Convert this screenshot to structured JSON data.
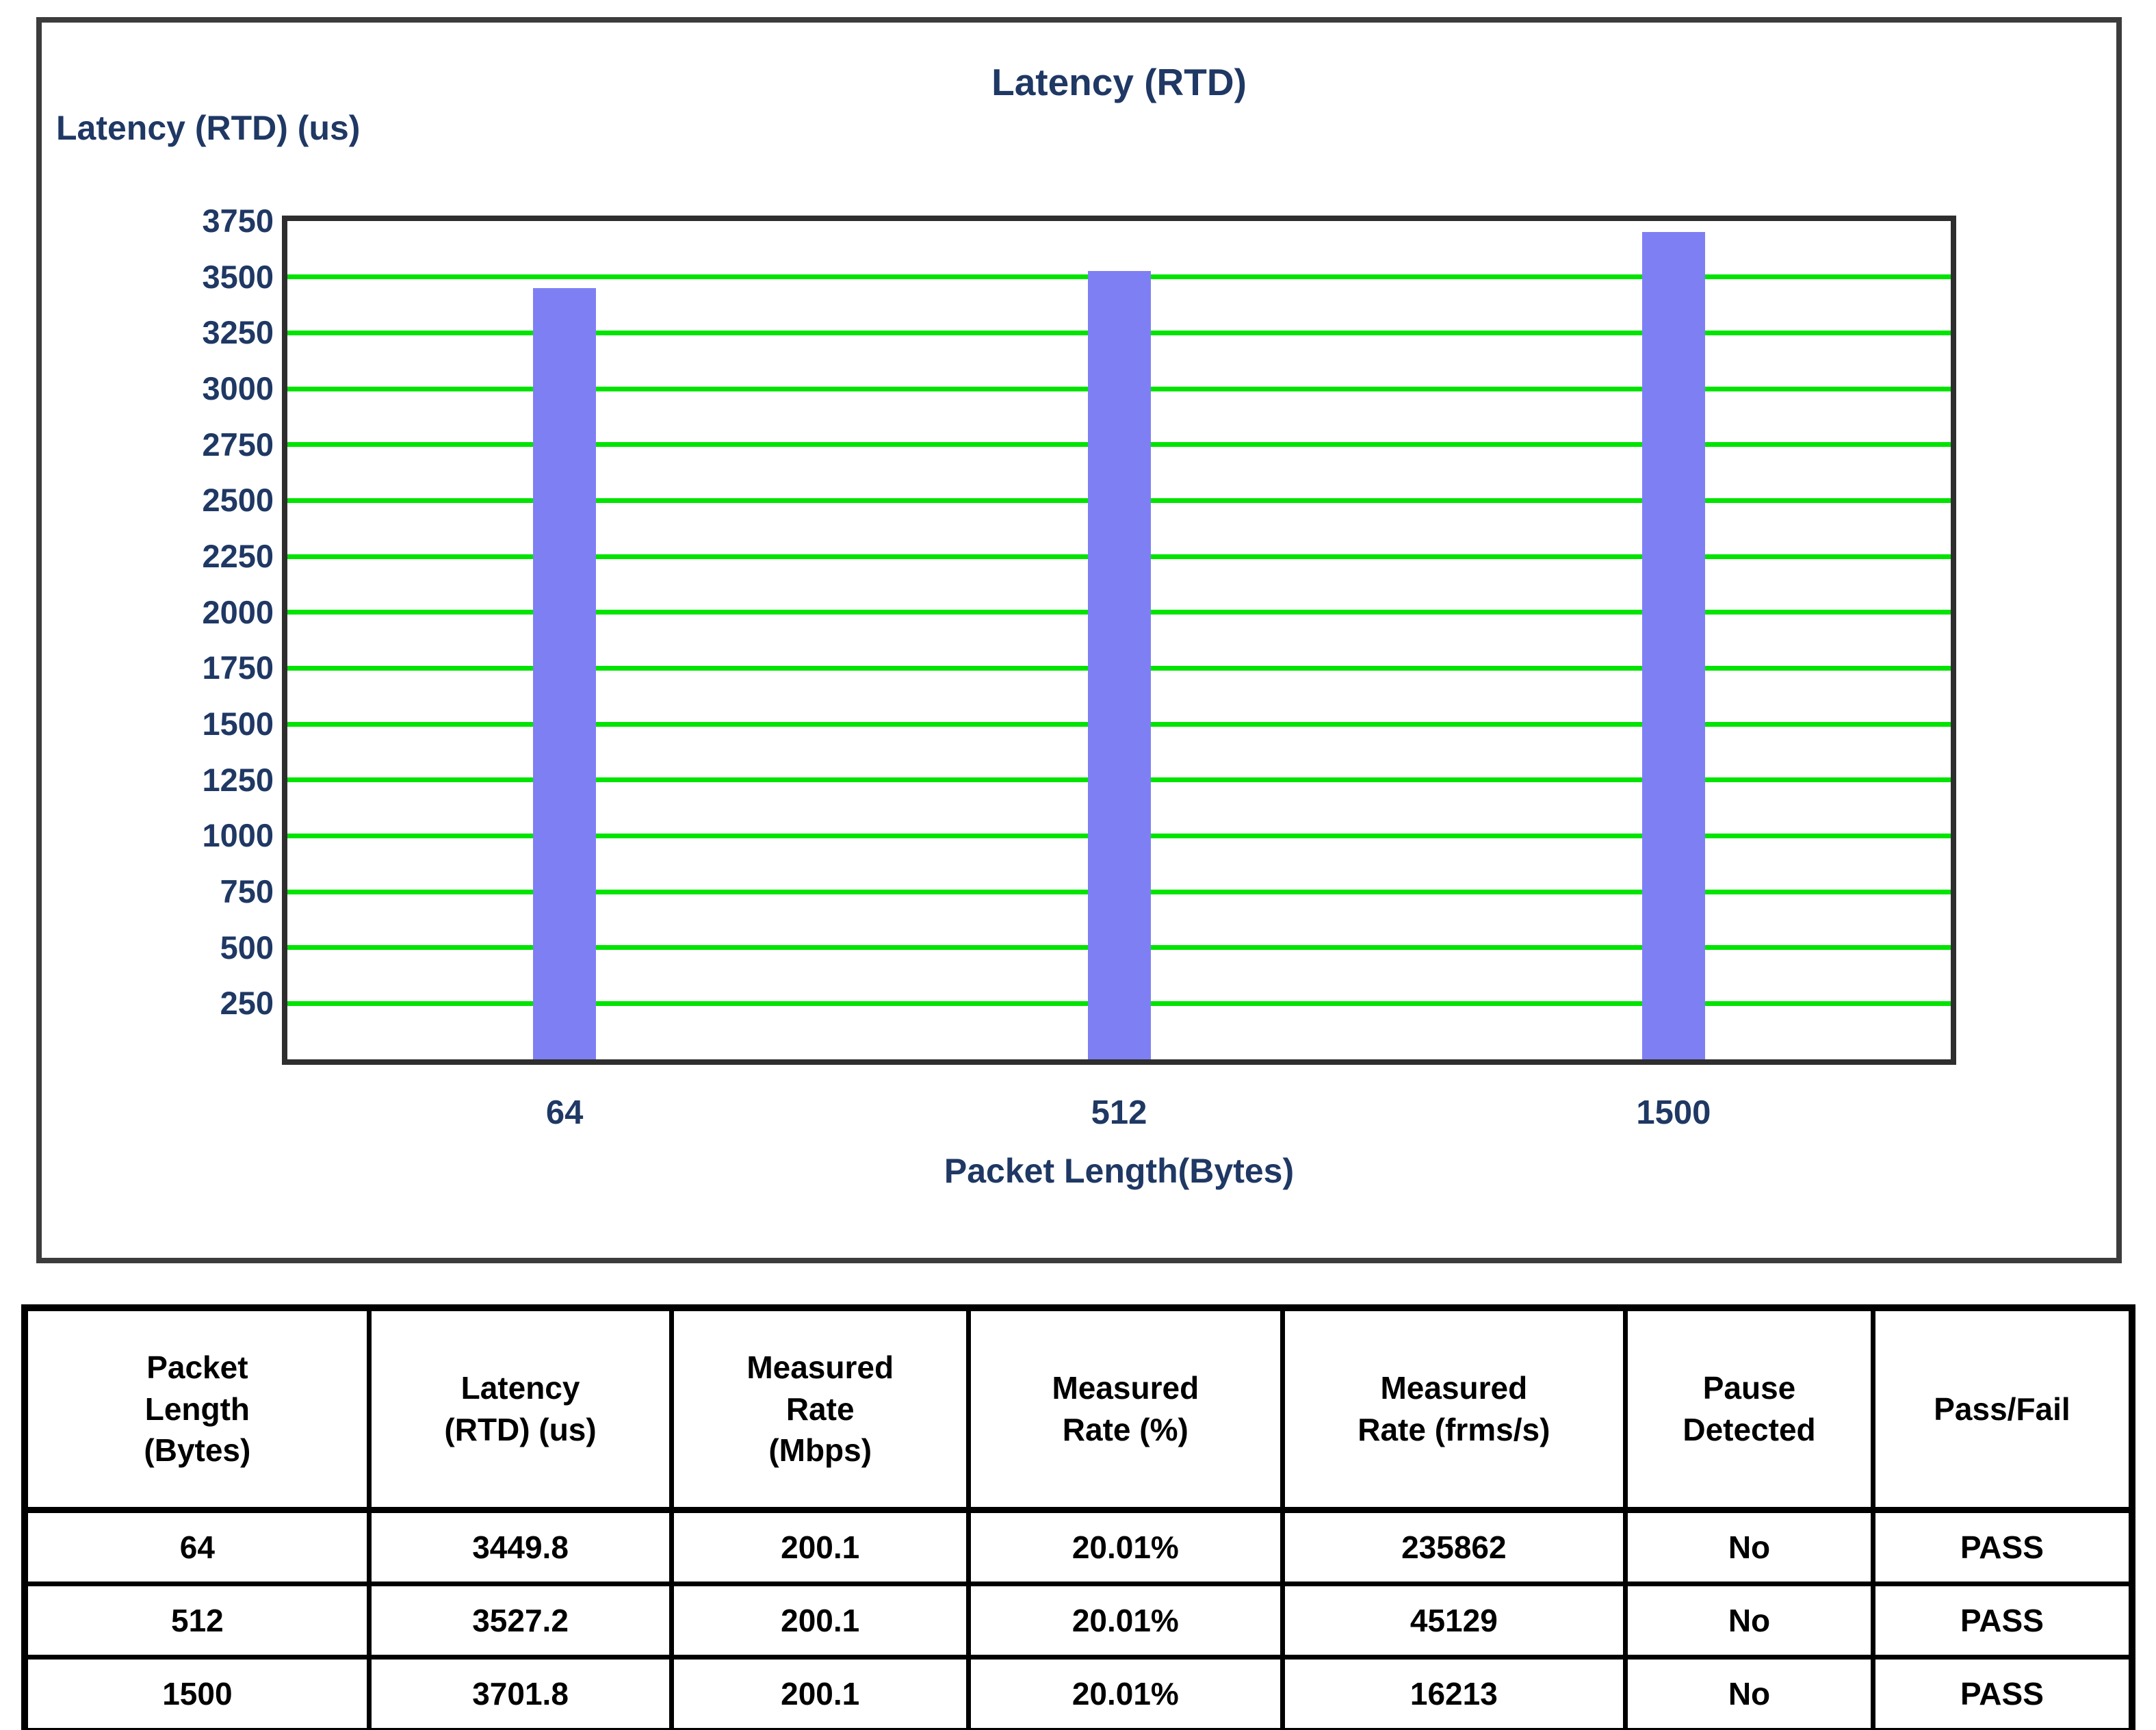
{
  "chart": {
    "title": "Latency (RTD)",
    "y_axis_title": "Latency (RTD) (us)",
    "x_axis_title": "Packet Length(Bytes)"
  },
  "chart_data": {
    "type": "bar",
    "title": "Latency (RTD)",
    "xlabel": "Packet Length(Bytes)",
    "ylabel": "Latency (RTD) (us)",
    "categories": [
      "64",
      "512",
      "1500"
    ],
    "values": [
      3449.8,
      3527.2,
      3701.8
    ],
    "ylim": [
      0,
      3750
    ],
    "ytick_interval": 250,
    "ytick_labels": [
      "250",
      "500",
      "750",
      "1000",
      "1250",
      "1500",
      "1750",
      "2000",
      "2250",
      "2500",
      "2750",
      "3000",
      "3250",
      "3500",
      "3750"
    ],
    "grid": "horizontal",
    "legend_position": "none",
    "colors": {
      "bar": "#7f7ff4",
      "gridline": "#00e400",
      "plot_border": "#2e2e2e",
      "outer_border": "#3c3c3c",
      "chart_text": "#1f3864"
    }
  },
  "results_table": {
    "headers": [
      "Packet\nLength\n(Bytes)",
      "Latency\n(RTD) (us)",
      "Measured\nRate\n(Mbps)",
      "Measured\nRate (%)",
      "Measured\nRate (frms/s)",
      "Pause\nDetected",
      "Pass/Fail"
    ],
    "rows": [
      [
        "64",
        "3449.8",
        "200.1",
        "20.01%",
        "235862",
        "No",
        "PASS"
      ],
      [
        "512",
        "3527.2",
        "200.1",
        "20.01%",
        "45129",
        "No",
        "PASS"
      ],
      [
        "1500",
        "3701.8",
        "200.1",
        "20.01%",
        "16213",
        "No",
        "PASS"
      ]
    ]
  }
}
